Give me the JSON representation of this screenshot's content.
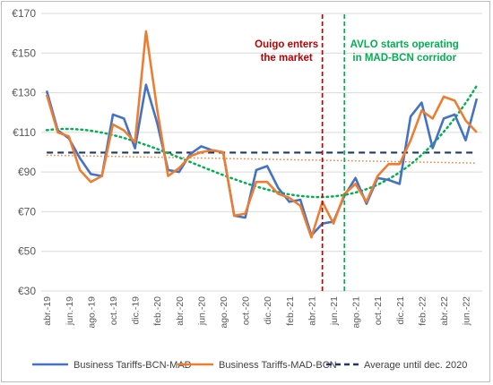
{
  "chart_data": {
    "type": "line",
    "ylim": [
      30,
      170
    ],
    "y_ticks": [
      "€30",
      "€50",
      "€70",
      "€90",
      "€110",
      "€130",
      "€150",
      "€170"
    ],
    "y_tick_values": [
      30,
      50,
      70,
      90,
      110,
      130,
      150,
      170
    ],
    "x_labels": [
      "abr.-19",
      "jun.-19",
      "ago.-19",
      "oct.-19",
      "dic.-19",
      "feb.-20",
      "abr.-20",
      "jun.-20",
      "ago.-20",
      "oct.-20",
      "dic.-20",
      "feb.-21",
      "abr.-21",
      "jun.-21",
      "ago.-21",
      "oct.-21",
      "dic.-21",
      "feb.-22",
      "abr.-22",
      "jun.-22"
    ],
    "x_label_every": 2,
    "grid": "horizontal",
    "legend_position": "bottom",
    "series": [
      {
        "name": "Business Tariffs-BCN-MAD",
        "color": "#4472C4",
        "values": [
          131,
          111,
          107,
          97,
          89,
          88,
          119,
          117,
          102,
          134,
          115,
          91,
          90,
          99,
          103,
          101,
          100,
          68,
          67,
          91,
          93,
          82,
          75,
          76,
          58,
          64,
          65,
          78,
          87,
          74,
          87,
          86,
          84,
          118,
          125,
          102,
          117,
          119,
          106,
          127
        ]
      },
      {
        "name": "Business Tariffs-MAD-BCN",
        "color": "#ED7D31",
        "values": [
          129,
          110,
          108,
          91,
          85,
          88,
          114,
          111,
          105,
          161,
          122,
          88,
          92,
          98,
          100,
          101,
          100,
          68,
          69,
          85,
          85,
          79,
          77,
          73,
          57,
          75,
          64,
          79,
          84,
          75,
          88,
          94,
          94,
          106,
          121,
          117,
          128,
          126,
          116,
          110
        ]
      }
    ],
    "average": {
      "name": "Average until dec. 2020",
      "value": 99.8,
      "color": "#1F3864"
    },
    "trendlines": [
      {
        "series": "Business Tariffs-BCN-MAD",
        "type": "polynomial",
        "color": "#00B050"
      },
      {
        "series": "Business Tariffs-MAD-BCN",
        "type": "linear",
        "color": "#ED7D31",
        "start": 98.5,
        "end": 94.5
      }
    ],
    "annotations": [
      {
        "text_lines": [
          "Ouigo enters",
          "the market"
        ],
        "color": "#C00000",
        "x_index": 25
      },
      {
        "text_lines": [
          "AVLO starts operating",
          "in MAD-BCN corridor"
        ],
        "color": "#00B050",
        "x_index": 27
      }
    ],
    "legend": [
      {
        "label": "Business Tariffs-BCN-MAD",
        "color": "#4472C4",
        "style": "solid"
      },
      {
        "label": "Business Tariffs-MAD-BCN",
        "color": "#ED7D31",
        "style": "solid"
      },
      {
        "label": "Average until dec. 2020",
        "color": "#1F3864",
        "style": "dashed"
      }
    ]
  }
}
